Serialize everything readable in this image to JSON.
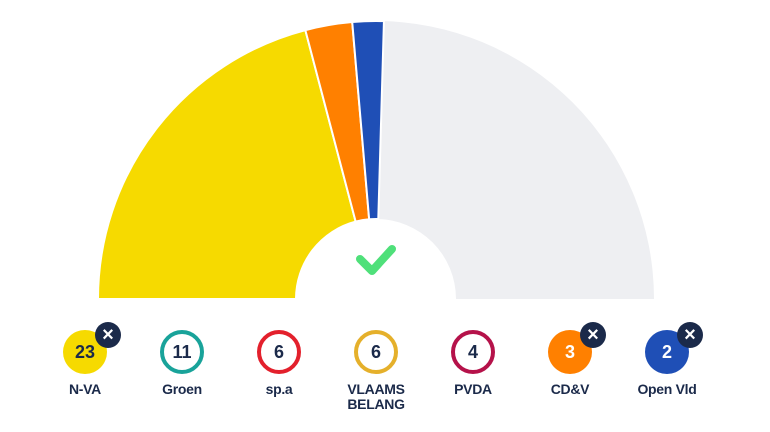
{
  "parties": [
    {
      "name": "N-VA",
      "seats": 23,
      "color": "#f6da00",
      "selected": true
    },
    {
      "name": "Groen",
      "seats": 11,
      "color": "#19a39a",
      "selected": false
    },
    {
      "name": "sp.a",
      "seats": 6,
      "color": "#e3202c",
      "selected": false
    },
    {
      "name": "VLAAMS BELANG",
      "seats": 6,
      "color": "#e5b02b",
      "selected": false
    },
    {
      "name": "PVDA",
      "seats": 4,
      "color": "#b5124a",
      "selected": false
    },
    {
      "name": "CD&V",
      "seats": 3,
      "color": "#ff8000",
      "selected": true
    },
    {
      "name": "Open Vld",
      "seats": 2,
      "color": "#1f4fb6",
      "selected": true
    }
  ]
}
